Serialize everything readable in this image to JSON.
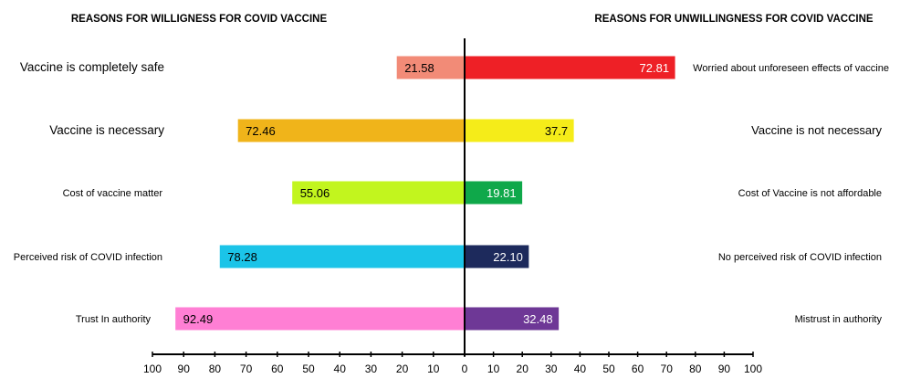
{
  "chart_data": {
    "type": "bar",
    "orientation": "horizontal-diverging",
    "left_title": "REASONS FOR WILLIGNESS FOR COVID VACCINE",
    "right_title": "REASONS FOR UNWILLINGNESS FOR COVID VACCINE",
    "xlim_left": [
      0,
      100
    ],
    "xlim_right": [
      0,
      100
    ],
    "x_ticks_left": [
      "100",
      "90",
      "80",
      "70",
      "60",
      "50",
      "40",
      "30",
      "20",
      "10"
    ],
    "x_ticks_right": [
      "0",
      "10",
      "20",
      "30",
      "40",
      "50",
      "60",
      "70",
      "80",
      "90",
      "100"
    ],
    "grid": false,
    "left": [
      {
        "label": "Vaccine is completely safe",
        "value": 21.58,
        "display": "21.58",
        "color": "#f28b77",
        "text_color": "#000000"
      },
      {
        "label": "Vaccine is necessary",
        "value": 72.46,
        "display": "72.46",
        "color": "#f0b41a",
        "text_color": "#000000"
      },
      {
        "label": "Cost of vaccine matter",
        "value": 55.06,
        "display": "55.06",
        "color": "#c2f51e",
        "text_color": "#000000"
      },
      {
        "label": "Perceived risk of COVID infection",
        "value": 78.28,
        "display": "78.28",
        "color": "#1bc4e8",
        "text_color": "#000000"
      },
      {
        "label": "Trust In authority",
        "value": 92.49,
        "display": "92.49",
        "color": "#ff7fd4",
        "text_color": "#000000"
      }
    ],
    "right": [
      {
        "label": "Worried about unforeseen effects of vaccine",
        "value": 72.81,
        "display": "72.81",
        "color": "#ee2026",
        "text_color": "#ffffff"
      },
      {
        "label": "Vaccine is not necessary",
        "value": 37.7,
        "display": "37.7",
        "color": "#f5ec19",
        "text_color": "#000000"
      },
      {
        "label": "Cost of Vaccine is not affordable",
        "value": 19.81,
        "display": "19.81",
        "color": "#0fa84a",
        "text_color": "#ffffff"
      },
      {
        "label": "No perceived risk of COVID infection",
        "value": 22.1,
        "display": "22.10",
        "color": "#1d2a5c",
        "text_color": "#ffffff"
      },
      {
        "label": "Mistrust in authority",
        "value": 32.48,
        "display": "32.48",
        "color": "#6e3896",
        "text_color": "#ffffff"
      }
    ]
  }
}
